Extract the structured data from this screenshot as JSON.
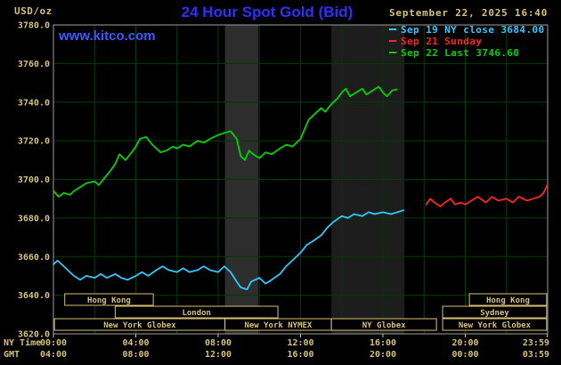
{
  "header": {
    "units_label": "USD/oz",
    "title": "24 Hour Spot Gold (Bid)",
    "datetime": "September 22, 2025 16:40",
    "watermark": "www.kitco.com"
  },
  "legend": {
    "items": [
      {
        "label": "Sep 19 NY close 3684.00",
        "color": "#2ec8ff"
      },
      {
        "label": "Sep 21 Sunday",
        "color": "#ff2424"
      },
      {
        "label": "Sep 22 Last 3746.60",
        "color": "#00d400"
      }
    ]
  },
  "axis_labels": {
    "ny_time": "NY Time",
    "gmt": "GMT"
  },
  "colors": {
    "background": "#000000",
    "tan": "#d6c277",
    "grid": "#003d00",
    "frame": "#a0a0a0",
    "title_blue": "#2e2eff",
    "link_blue": "#3a5bff",
    "session_box_fill": "#000000"
  },
  "chart_data": {
    "type": "line",
    "title": "24 Hour Spot Gold (Bid)",
    "y_axis": {
      "units": "USD/oz",
      "range": [
        3620,
        3780
      ],
      "tick_step": 20,
      "ticks": [
        3620,
        3640,
        3660,
        3680,
        3700,
        3720,
        3740,
        3760,
        3780
      ]
    },
    "x_axis": {
      "range_hours": [
        0,
        24
      ],
      "grid_step_hours": 2,
      "ticks": [
        {
          "h": 0,
          "ny": "00:00",
          "gmt": "04:00"
        },
        {
          "h": 4,
          "ny": "04:00",
          "gmt": "08:00"
        },
        {
          "h": 8,
          "ny": "08:00",
          "gmt": "12:00"
        },
        {
          "h": 12,
          "ny": "12:00",
          "gmt": "16:00"
        },
        {
          "h": 16,
          "ny": "16:00",
          "gmt": "20:00"
        },
        {
          "h": 20,
          "ny": "20:00",
          "gmt": "00:00"
        },
        {
          "h": 23.98,
          "ny": "23:59",
          "gmt": "03:59",
          "align": "end"
        }
      ]
    },
    "bands": [
      {
        "start": 8.33,
        "end": 9.95,
        "color": "#2d2d2d"
      },
      {
        "start": 13.5,
        "end": 17.05,
        "color": "#1d1d1d"
      }
    ],
    "series": [
      {
        "id": "sep19",
        "name": "Sep 19 NY close",
        "close": 3684.0,
        "color": "#2ec8ff",
        "points": [
          [
            0,
            3656
          ],
          [
            0.2,
            3658
          ],
          [
            0.5,
            3655
          ],
          [
            0.8,
            3652
          ],
          [
            1,
            3650
          ],
          [
            1.3,
            3648
          ],
          [
            1.6,
            3650
          ],
          [
            2,
            3649
          ],
          [
            2.3,
            3651
          ],
          [
            2.6,
            3649
          ],
          [
            3,
            3651
          ],
          [
            3.3,
            3649
          ],
          [
            3.6,
            3648
          ],
          [
            4,
            3650
          ],
          [
            4.3,
            3652
          ],
          [
            4.6,
            3650
          ],
          [
            5,
            3653
          ],
          [
            5.3,
            3655
          ],
          [
            5.6,
            3653
          ],
          [
            6,
            3652
          ],
          [
            6.3,
            3654
          ],
          [
            6.6,
            3652
          ],
          [
            7,
            3653
          ],
          [
            7.3,
            3655
          ],
          [
            7.6,
            3653
          ],
          [
            8,
            3652
          ],
          [
            8.3,
            3655
          ],
          [
            8.6,
            3652
          ],
          [
            8.9,
            3647
          ],
          [
            9.1,
            3644
          ],
          [
            9.4,
            3643
          ],
          [
            9.6,
            3647
          ],
          [
            10,
            3649
          ],
          [
            10.3,
            3646
          ],
          [
            10.6,
            3648
          ],
          [
            11,
            3651
          ],
          [
            11.3,
            3655
          ],
          [
            11.6,
            3658
          ],
          [
            12,
            3662
          ],
          [
            12.3,
            3666
          ],
          [
            12.6,
            3668
          ],
          [
            13,
            3671
          ],
          [
            13.3,
            3675
          ],
          [
            13.6,
            3678
          ],
          [
            14,
            3681
          ],
          [
            14.3,
            3680
          ],
          [
            14.6,
            3682
          ],
          [
            15,
            3681
          ],
          [
            15.3,
            3683
          ],
          [
            15.6,
            3682
          ],
          [
            16,
            3683
          ],
          [
            16.4,
            3682
          ],
          [
            16.7,
            3683
          ],
          [
            17,
            3684
          ]
        ]
      },
      {
        "id": "sep21",
        "name": "Sep 21 Sunday",
        "color": "#ff2424",
        "points": [
          [
            18.1,
            3687
          ],
          [
            18.3,
            3690
          ],
          [
            18.5,
            3688
          ],
          [
            18.8,
            3686
          ],
          [
            19,
            3688
          ],
          [
            19.3,
            3690
          ],
          [
            19.5,
            3687
          ],
          [
            19.8,
            3688
          ],
          [
            20,
            3687
          ],
          [
            20.3,
            3689
          ],
          [
            20.6,
            3691
          ],
          [
            21,
            3688
          ],
          [
            21.3,
            3691
          ],
          [
            21.6,
            3689
          ],
          [
            22,
            3690
          ],
          [
            22.3,
            3688
          ],
          [
            22.6,
            3691
          ],
          [
            23,
            3689
          ],
          [
            23.3,
            3690
          ],
          [
            23.6,
            3691
          ],
          [
            23.8,
            3693
          ],
          [
            23.98,
            3697
          ]
        ]
      },
      {
        "id": "sep22",
        "name": "Sep 22",
        "last": 3746.6,
        "color": "#00d400",
        "points": [
          [
            0,
            3694
          ],
          [
            0.25,
            3691
          ],
          [
            0.5,
            3693
          ],
          [
            0.8,
            3692
          ],
          [
            1,
            3694
          ],
          [
            1.3,
            3696
          ],
          [
            1.6,
            3698
          ],
          [
            2,
            3699
          ],
          [
            2.2,
            3697
          ],
          [
            2.5,
            3701
          ],
          [
            2.8,
            3705
          ],
          [
            3,
            3708
          ],
          [
            3.2,
            3713
          ],
          [
            3.5,
            3710
          ],
          [
            3.8,
            3714
          ],
          [
            4,
            3717
          ],
          [
            4.2,
            3721
          ],
          [
            4.5,
            3722
          ],
          [
            4.8,
            3718
          ],
          [
            5,
            3716
          ],
          [
            5.2,
            3714
          ],
          [
            5.5,
            3715
          ],
          [
            5.8,
            3717
          ],
          [
            6,
            3716
          ],
          [
            6.3,
            3718
          ],
          [
            6.6,
            3717
          ],
          [
            7,
            3720
          ],
          [
            7.3,
            3719
          ],
          [
            7.6,
            3721
          ],
          [
            8,
            3723
          ],
          [
            8.3,
            3724
          ],
          [
            8.6,
            3725
          ],
          [
            8.9,
            3721
          ],
          [
            9.1,
            3712
          ],
          [
            9.3,
            3710
          ],
          [
            9.5,
            3715
          ],
          [
            9.7,
            3713
          ],
          [
            10,
            3711
          ],
          [
            10.3,
            3714
          ],
          [
            10.6,
            3713
          ],
          [
            11,
            3716
          ],
          [
            11.3,
            3718
          ],
          [
            11.6,
            3717
          ],
          [
            12,
            3721
          ],
          [
            12.2,
            3726
          ],
          [
            12.4,
            3731
          ],
          [
            12.7,
            3734
          ],
          [
            13,
            3737
          ],
          [
            13.2,
            3735
          ],
          [
            13.5,
            3739
          ],
          [
            13.8,
            3742
          ],
          [
            14,
            3745
          ],
          [
            14.2,
            3747
          ],
          [
            14.4,
            3743
          ],
          [
            14.7,
            3745
          ],
          [
            15,
            3747
          ],
          [
            15.2,
            3744
          ],
          [
            15.5,
            3746
          ],
          [
            15.8,
            3748
          ],
          [
            16,
            3745
          ],
          [
            16.2,
            3743
          ],
          [
            16.45,
            3746
          ],
          [
            16.67,
            3746.6
          ]
        ]
      }
    ],
    "sessions": [
      {
        "label": "Hong Kong",
        "row": 0,
        "start": 0.55,
        "end": 4.85
      },
      {
        "label": "Hong Kong",
        "row": 0,
        "start": 20.2,
        "end": 23.95
      },
      {
        "label": "London",
        "row": 1,
        "start": 3.0,
        "end": 10.9
      },
      {
        "label": "Sydney",
        "row": 1,
        "start": 18.9,
        "end": 23.95
      },
      {
        "label": "New York Globex",
        "row": 2,
        "start": 0.05,
        "end": 8.33
      },
      {
        "label": "New York NYMEX",
        "row": 2,
        "start": 8.33,
        "end": 13.5
      },
      {
        "label": "NY Globex",
        "row": 2,
        "start": 13.5,
        "end": 18.6
      },
      {
        "label": "New York Globex",
        "row": 2,
        "start": 18.9,
        "end": 23.95
      }
    ]
  }
}
